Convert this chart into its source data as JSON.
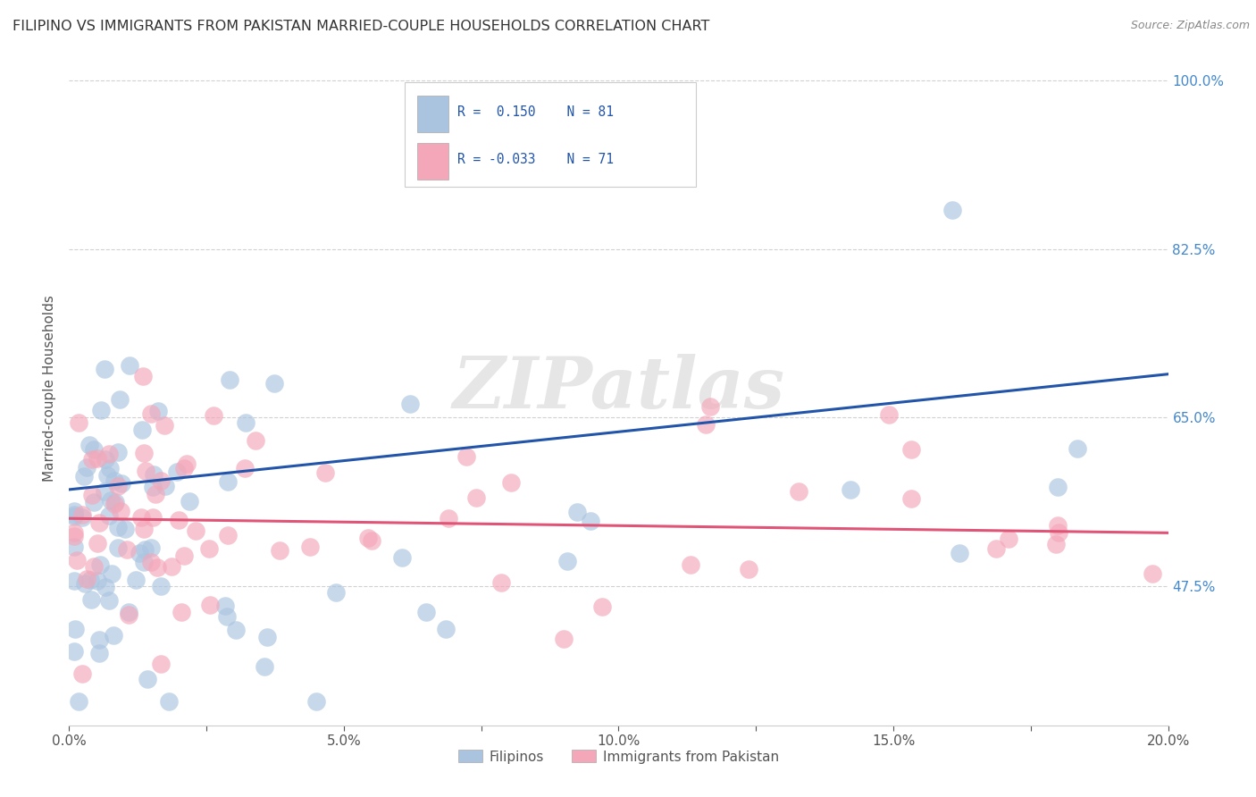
{
  "title": "FILIPINO VS IMMIGRANTS FROM PAKISTAN MARRIED-COUPLE HOUSEHOLDS CORRELATION CHART",
  "source": "Source: ZipAtlas.com",
  "ylabel_label": "Married-couple Households",
  "xlim": [
    0.0,
    0.2
  ],
  "ylim": [
    0.33,
    1.03
  ],
  "xtick_labels": [
    "0.0%",
    "",
    "5.0%",
    "",
    "10.0%",
    "",
    "15.0%",
    "",
    "20.0%"
  ],
  "xtick_vals": [
    0.0,
    0.025,
    0.05,
    0.075,
    0.1,
    0.125,
    0.15,
    0.175,
    0.2
  ],
  "ytick_labels": [
    "47.5%",
    "65.0%",
    "82.5%",
    "100.0%"
  ],
  "ytick_vals": [
    0.475,
    0.65,
    0.825,
    1.0
  ],
  "grid_color": "#cccccc",
  "background_color": "#ffffff",
  "filipino_color": "#aac4e0",
  "pakistan_color": "#f4a7b9",
  "filipino_line_color": "#2255aa",
  "pakistan_line_color": "#e05577",
  "title_color": "#333333",
  "axis_color": "#555555",
  "ytick_color": "#4488cc",
  "legend_text_color": "#2255aa",
  "legend_r1": "R =  0.150",
  "legend_n1": "N = 81",
  "legend_r2": "R = -0.033",
  "legend_n2": "N = 71",
  "watermark": "ZIPatlas",
  "filipinos_label": "Filipinos",
  "pakistan_label": "Immigrants from Pakistan",
  "fil_line_x0": 0.0,
  "fil_line_y0": 0.575,
  "fil_line_x1": 0.2,
  "fil_line_y1": 0.695,
  "pak_line_x0": 0.0,
  "pak_line_y0": 0.545,
  "pak_line_x1": 0.2,
  "pak_line_y1": 0.53
}
